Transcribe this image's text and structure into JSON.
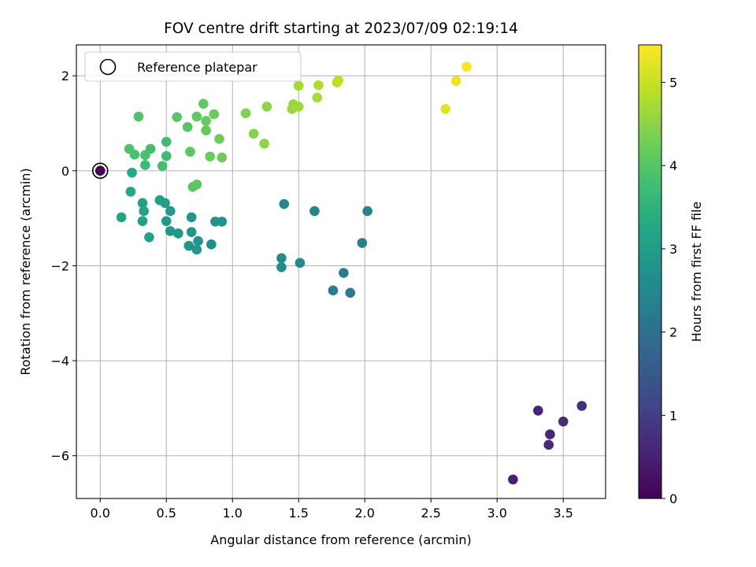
{
  "chart_data": {
    "type": "scatter",
    "title": "FOV centre drift starting at 2023/07/09 02:19:14",
    "xlabel": "Angular distance from reference (arcmin)",
    "ylabel": "Rotation from reference (arcmin)",
    "xlim": [
      -0.18,
      3.82
    ],
    "ylim": [
      -6.9,
      2.65
    ],
    "xticks": [
      0.0,
      0.5,
      1.0,
      1.5,
      2.0,
      2.5,
      3.0,
      3.5
    ],
    "xtick_labels": [
      "0.0",
      "0.5",
      "1.0",
      "1.5",
      "2.0",
      "2.5",
      "3.0",
      "3.5"
    ],
    "yticks": [
      2,
      0,
      -2,
      -4,
      -6
    ],
    "ytick_labels": [
      "2",
      "0",
      "−2",
      "−4",
      "−6"
    ],
    "grid": true,
    "legend": {
      "label": "Reference platepar",
      "placement": "top-left"
    },
    "reference_point": {
      "x": 0,
      "y": 0
    },
    "colorbar": {
      "label": "Hours from first FF file",
      "min": 0,
      "max": 5.45,
      "ticks": [
        0,
        1,
        2,
        3,
        4,
        5
      ],
      "tick_labels": [
        "0",
        "1",
        "2",
        "3",
        "4",
        "5"
      ],
      "colormap": "viridis"
    },
    "points": [
      {
        "x": 0.0,
        "y": 0.0,
        "c": 0.0
      },
      {
        "x": 3.12,
        "y": -6.5,
        "c": 0.5
      },
      {
        "x": 3.31,
        "y": -5.05,
        "c": 0.55
      },
      {
        "x": 3.4,
        "y": -5.55,
        "c": 0.6
      },
      {
        "x": 3.39,
        "y": -5.77,
        "c": 0.65
      },
      {
        "x": 3.5,
        "y": -5.28,
        "c": 0.7
      },
      {
        "x": 3.64,
        "y": -4.95,
        "c": 0.75
      },
      {
        "x": 1.89,
        "y": -2.57,
        "c": 2.2
      },
      {
        "x": 1.76,
        "y": -2.52,
        "c": 2.25
      },
      {
        "x": 1.84,
        "y": -2.15,
        "c": 2.3
      },
      {
        "x": 1.98,
        "y": -1.52,
        "c": 2.35
      },
      {
        "x": 2.02,
        "y": -0.85,
        "c": 2.4
      },
      {
        "x": 1.62,
        "y": -0.85,
        "c": 2.45
      },
      {
        "x": 1.39,
        "y": -0.7,
        "c": 2.5
      },
      {
        "x": 1.51,
        "y": -1.94,
        "c": 2.55
      },
      {
        "x": 1.37,
        "y": -1.84,
        "c": 2.6
      },
      {
        "x": 1.37,
        "y": -2.03,
        "c": 2.6
      },
      {
        "x": 0.84,
        "y": -1.55,
        "c": 2.7
      },
      {
        "x": 0.92,
        "y": -1.07,
        "c": 2.75
      },
      {
        "x": 0.87,
        "y": -1.07,
        "c": 2.75
      },
      {
        "x": 0.69,
        "y": -0.98,
        "c": 2.8
      },
      {
        "x": 0.69,
        "y": -1.29,
        "c": 2.8
      },
      {
        "x": 0.74,
        "y": -1.48,
        "c": 2.85
      },
      {
        "x": 0.73,
        "y": -1.66,
        "c": 2.85
      },
      {
        "x": 0.67,
        "y": -1.58,
        "c": 2.85
      },
      {
        "x": 0.59,
        "y": -1.32,
        "c": 2.9
      },
      {
        "x": 0.53,
        "y": -1.27,
        "c": 2.9
      },
      {
        "x": 0.53,
        "y": -0.85,
        "c": 2.95
      },
      {
        "x": 0.5,
        "y": -1.06,
        "c": 2.95
      },
      {
        "x": 0.49,
        "y": -0.68,
        "c": 3.0
      },
      {
        "x": 0.45,
        "y": -0.62,
        "c": 3.05
      },
      {
        "x": 0.37,
        "y": -1.4,
        "c": 3.1
      },
      {
        "x": 0.33,
        "y": -0.85,
        "c": 3.1
      },
      {
        "x": 0.32,
        "y": -1.06,
        "c": 3.1
      },
      {
        "x": 0.32,
        "y": -0.68,
        "c": 3.15
      },
      {
        "x": 0.16,
        "y": -0.98,
        "c": 3.2
      },
      {
        "x": 0.23,
        "y": -0.44,
        "c": 3.25
      },
      {
        "x": 0.24,
        "y": -0.04,
        "c": 3.3
      },
      {
        "x": 0.34,
        "y": 0.12,
        "c": 3.7
      },
      {
        "x": 0.5,
        "y": 0.31,
        "c": 3.75
      },
      {
        "x": 0.5,
        "y": 0.61,
        "c": 3.75
      },
      {
        "x": 0.47,
        "y": 0.1,
        "c": 3.8
      },
      {
        "x": 0.38,
        "y": 0.46,
        "c": 3.8
      },
      {
        "x": 0.34,
        "y": 0.33,
        "c": 3.85
      },
      {
        "x": 0.26,
        "y": 0.34,
        "c": 3.85
      },
      {
        "x": 0.22,
        "y": 0.46,
        "c": 3.9
      },
      {
        "x": 0.29,
        "y": 1.14,
        "c": 3.95
      },
      {
        "x": 0.58,
        "y": 1.13,
        "c": 4.0
      },
      {
        "x": 0.66,
        "y": 0.92,
        "c": 4.0
      },
      {
        "x": 0.68,
        "y": 0.4,
        "c": 4.05
      },
      {
        "x": 0.7,
        "y": -0.34,
        "c": 4.05
      },
      {
        "x": 0.73,
        "y": -0.29,
        "c": 4.05
      },
      {
        "x": 0.73,
        "y": 1.14,
        "c": 4.1
      },
      {
        "x": 0.78,
        "y": 1.41,
        "c": 4.1
      },
      {
        "x": 0.8,
        "y": 1.05,
        "c": 4.15
      },
      {
        "x": 0.8,
        "y": 0.85,
        "c": 4.15
      },
      {
        "x": 0.83,
        "y": 0.3,
        "c": 4.2
      },
      {
        "x": 0.86,
        "y": 1.19,
        "c": 4.2
      },
      {
        "x": 0.9,
        "y": 0.67,
        "c": 4.25
      },
      {
        "x": 0.92,
        "y": 0.28,
        "c": 4.25
      },
      {
        "x": 1.1,
        "y": 1.21,
        "c": 4.4
      },
      {
        "x": 1.16,
        "y": 0.78,
        "c": 4.45
      },
      {
        "x": 1.24,
        "y": 0.57,
        "c": 4.5
      },
      {
        "x": 1.26,
        "y": 1.35,
        "c": 4.5
      },
      {
        "x": 1.45,
        "y": 1.3,
        "c": 4.6
      },
      {
        "x": 1.46,
        "y": 1.4,
        "c": 4.6
      },
      {
        "x": 1.5,
        "y": 1.35,
        "c": 4.65
      },
      {
        "x": 1.5,
        "y": 1.79,
        "c": 4.7
      },
      {
        "x": 1.64,
        "y": 1.54,
        "c": 4.75
      },
      {
        "x": 1.65,
        "y": 1.8,
        "c": 4.8
      },
      {
        "x": 1.79,
        "y": 1.86,
        "c": 4.85
      },
      {
        "x": 1.8,
        "y": 1.9,
        "c": 4.9
      },
      {
        "x": 2.61,
        "y": 1.3,
        "c": 5.2
      },
      {
        "x": 2.69,
        "y": 1.89,
        "c": 5.3
      },
      {
        "x": 2.77,
        "y": 2.19,
        "c": 5.4
      }
    ]
  }
}
